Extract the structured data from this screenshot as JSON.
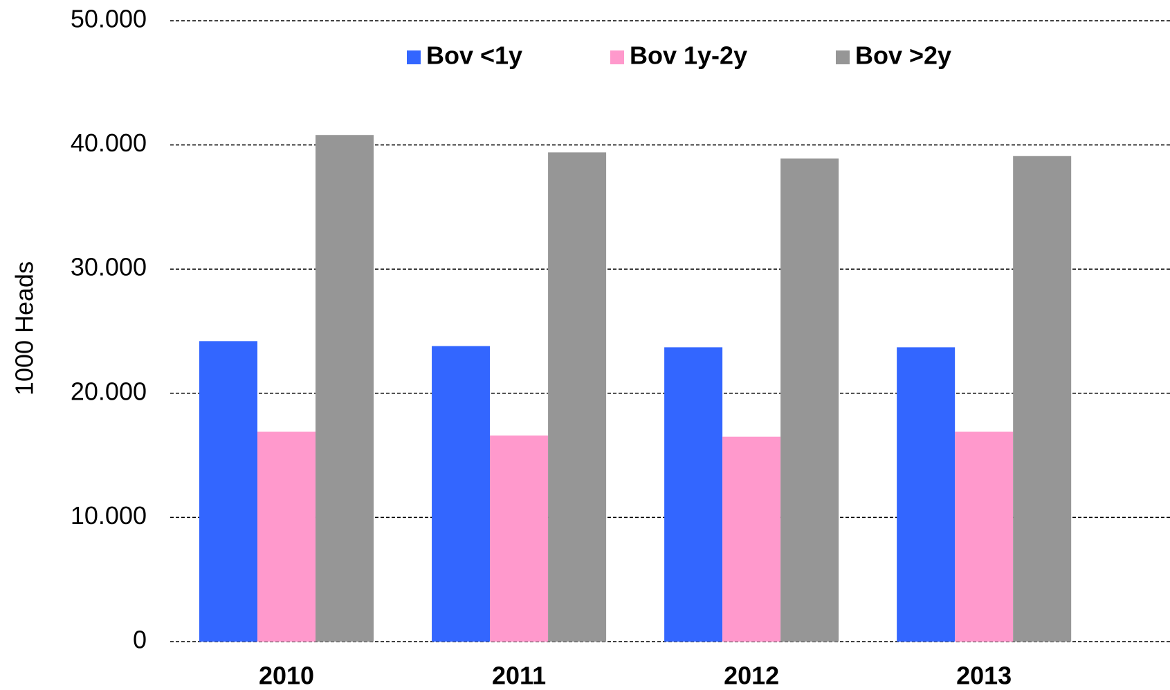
{
  "chart_data": {
    "type": "bar",
    "y_label": "1000 Heads",
    "categories": [
      "2010",
      "2011",
      "2012",
      "2013"
    ],
    "series": [
      {
        "name": "Bov <1y",
        "color": "#3366ff",
        "values": [
          24200,
          23800,
          23700,
          23700
        ]
      },
      {
        "name": "Bov 1y-2y",
        "color": "#ff99cc",
        "values": [
          16900,
          16600,
          16500,
          16900
        ]
      },
      {
        "name": "Bov >2y",
        "color": "#969696",
        "values": [
          40800,
          39400,
          38900,
          39100
        ]
      }
    ],
    "ylim": [
      0,
      50000
    ],
    "yticks": [
      0,
      {
        "value": 10000,
        "label": "10.000"
      },
      {
        "value": 20000,
        "label": "20.000"
      },
      {
        "value": 30000,
        "label": "30.000"
      },
      {
        "value": 40000,
        "label": "40.000"
      },
      {
        "value": 50000,
        "label": "50.000"
      }
    ],
    "grid": true,
    "legend": "top"
  }
}
